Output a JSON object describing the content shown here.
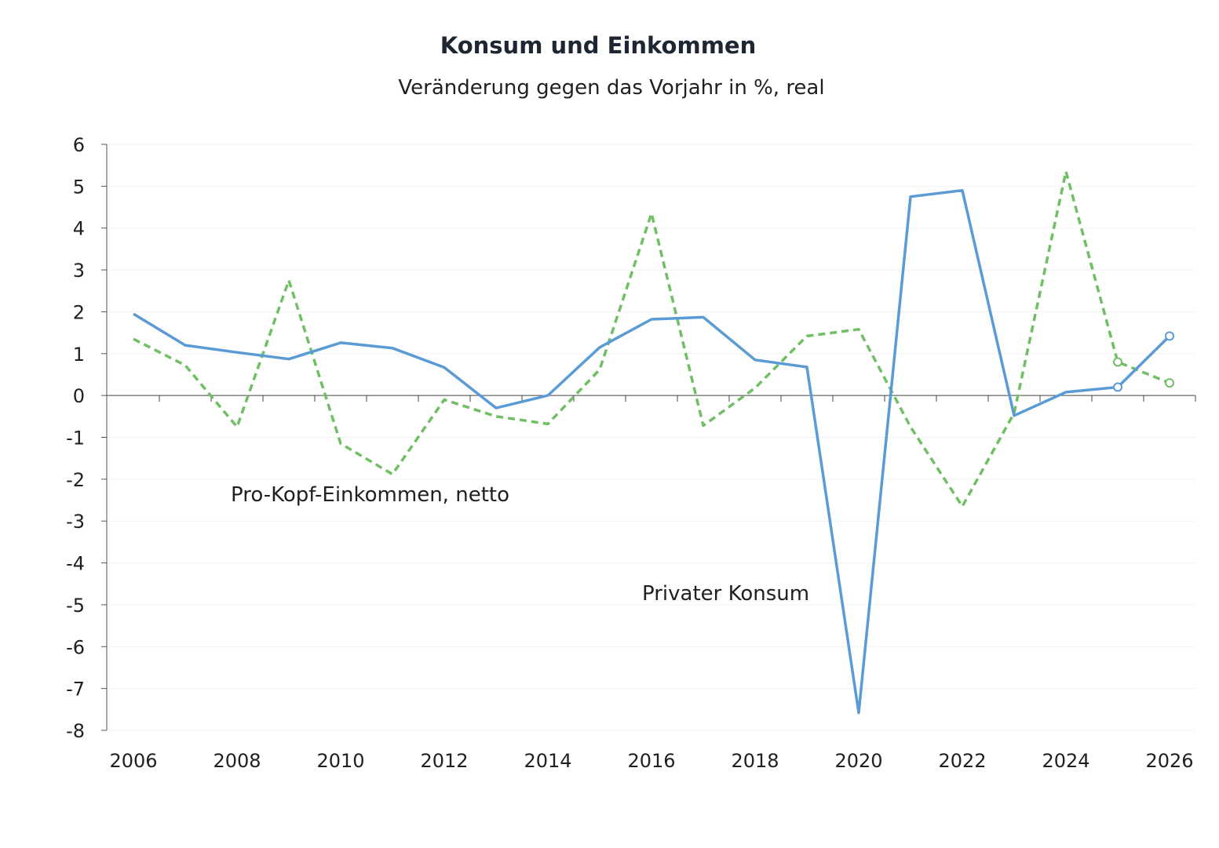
{
  "chart_data": {
    "type": "line",
    "title": "Konsum und Einkommen",
    "subtitle": "Veränderung gegen das Vorjahr in %, real",
    "x": [
      2006,
      2007,
      2008,
      2009,
      2010,
      2011,
      2012,
      2013,
      2014,
      2015,
      2016,
      2017,
      2018,
      2019,
      2020,
      2021,
      2022,
      2023,
      2024,
      2025,
      2026
    ],
    "x_ticks": [
      "2006",
      "2008",
      "2010",
      "2012",
      "2014",
      "2016",
      "2018",
      "2020",
      "2022",
      "2024",
      "2026"
    ],
    "y_ticks": [
      "6",
      "5",
      "4",
      "3",
      "2",
      "1",
      "0",
      "-1",
      "-2",
      "-3",
      "-4",
      "-5",
      "-6",
      "-7",
      "-8"
    ],
    "ylim": [
      -8,
      6
    ],
    "xlim": [
      2006,
      2026
    ],
    "grid": true,
    "series": [
      {
        "name": "Privater Konsum",
        "color": "#5b9bd5",
        "style": "solid",
        "values": [
          1.95,
          1.2,
          1.03,
          0.87,
          1.26,
          1.13,
          0.67,
          -0.3,
          0.0,
          1.15,
          1.82,
          1.87,
          0.85,
          0.68,
          -7.58,
          4.75,
          4.9,
          -0.48,
          0.08,
          0.2,
          1.42
        ],
        "forecast_from": 2025
      },
      {
        "name": "Pro-Kopf-Einkommen, netto",
        "color": "#70bf65",
        "style": "dashed",
        "values": [
          1.35,
          0.72,
          -0.75,
          2.75,
          -1.15,
          -1.88,
          -0.1,
          -0.5,
          -0.68,
          0.62,
          4.35,
          -0.72,
          0.18,
          1.42,
          1.58,
          -0.75,
          -2.65,
          -0.42,
          5.35,
          0.8,
          0.3
        ],
        "forecast_from": 2025
      }
    ],
    "annotations": [
      "Pro-Kopf-Einkommen, netto",
      "Privater Konsum"
    ]
  }
}
